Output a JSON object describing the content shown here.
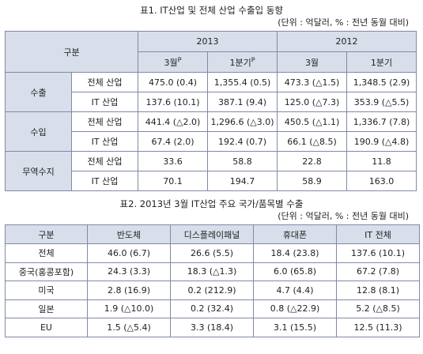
{
  "table1": {
    "title": "표1. IT산업 및 전체 산업 수출입 동향",
    "unit": "(단위 : 억달러, % : 전년 동월 대비)",
    "header_gubun": "구분",
    "years": [
      "2013",
      "2012"
    ],
    "subheaders": [
      {
        "label": "3월",
        "sup": "P"
      },
      {
        "label": "1분기",
        "sup": "P"
      },
      {
        "label": "3월",
        "sup": ""
      },
      {
        "label": "1분기",
        "sup": ""
      }
    ],
    "groups": [
      {
        "name": "수출",
        "rows": [
          {
            "label": "전체 산업",
            "values": [
              "475.0 (0.4)",
              "1,355.4 (0.5)",
              "473.3 (△1.5)",
              "1,348.5 (2.9)"
            ]
          },
          {
            "label": "IT 산업",
            "values": [
              "137.6 (10.1)",
              "387.1 (9.4)",
              "125.0 (△7.3)",
              "353.9 (△5.5)"
            ]
          }
        ]
      },
      {
        "name": "수입",
        "rows": [
          {
            "label": "전체 산업",
            "values": [
              "441.4 (△2.0)",
              "1,296.6 (△3.0)",
              "450.5 (△1.1)",
              "1,336.7 (7.8)"
            ]
          },
          {
            "label": "IT 산업",
            "values": [
              "67.4 (2.0)",
              "192.4 (0.7)",
              "66.1 (△8.5)",
              "190.9 (△4.8)"
            ]
          }
        ]
      },
      {
        "name": "무역수지",
        "rows": [
          {
            "label": "전체 산업",
            "values": [
              "33.6",
              "58.8",
              "22.8",
              "11.8"
            ]
          },
          {
            "label": "IT 산업",
            "values": [
              "70.1",
              "194.7",
              "58.9",
              "163.0"
            ]
          }
        ]
      }
    ]
  },
  "table2": {
    "title": "표2. 2013년 3월 IT산업 주요 국가/품목별 수출",
    "unit": "(단위 : 억달러, % : 전년 동월 대비)",
    "headers": [
      "구분",
      "반도체",
      "디스플레이패널",
      "휴대폰",
      "IT 전체"
    ],
    "rows": [
      {
        "label": "전체",
        "values": [
          "46.0 (6.7)",
          "26.6 (5.5)",
          "18.4 (23.8)",
          "137.6 (10.1)"
        ]
      },
      {
        "label": "중국(홍콩포함)",
        "values": [
          "24.3 (3.3)",
          "18.3 (△1.3)",
          "6.0 (65.8)",
          "67.2 (7.8)"
        ]
      },
      {
        "label": "미국",
        "values": [
          "2.8 (16.9)",
          "0.2 (212.9)",
          "4.7 (4.4)",
          "12.8 (8.1)"
        ]
      },
      {
        "label": "일본",
        "values": [
          "1.9 (△10.0)",
          "0.2 (32.4)",
          "0.8 (△22.9)",
          "5.2 (△8.5)"
        ]
      },
      {
        "label": "EU",
        "values": [
          "1.5 (△5.4)",
          "3.3 (18.4)",
          "3.1 (15.5)",
          "12.5 (11.3)"
        ]
      }
    ]
  }
}
